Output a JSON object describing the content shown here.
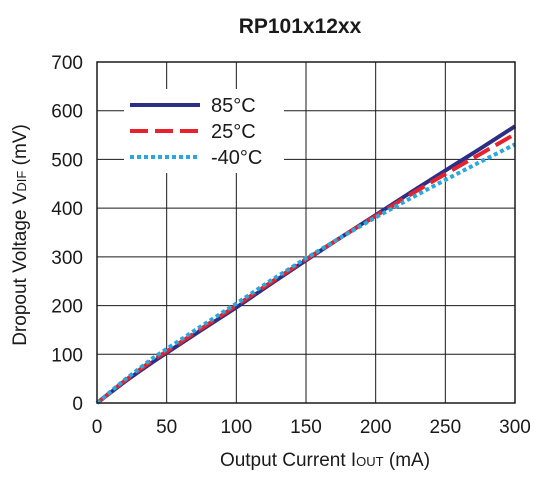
{
  "chart_data": {
    "type": "line",
    "title": "RP101x12xx",
    "xlabel": {
      "main": "Output Current I",
      "sub": "OUT",
      "unit": " (mA)"
    },
    "ylabel": {
      "main": "Dropout Voltage V",
      "sub": "DIF",
      "unit": " (mV)"
    },
    "xlim": [
      0,
      300
    ],
    "ylim": [
      0,
      700
    ],
    "xticks": [
      "0",
      "50",
      "100",
      "150",
      "200",
      "250",
      "300"
    ],
    "yticks": [
      "0",
      "100",
      "200",
      "300",
      "400",
      "500",
      "600",
      "700"
    ],
    "grid": true,
    "legend_position": "top-left",
    "series": [
      {
        "name": "85°C",
        "color": "#2b2f86",
        "dash": "solid",
        "x": [
          0,
          10,
          20,
          30,
          40,
          50,
          75,
          100,
          125,
          150,
          175,
          200,
          225,
          250,
          275,
          300
        ],
        "y": [
          0,
          22,
          44,
          64,
          84,
          103,
          150,
          196,
          245,
          293,
          340,
          386,
          432,
          477,
          522,
          568
        ]
      },
      {
        "name": "25°C",
        "color": "#e8222c",
        "dash": "long-dash",
        "x": [
          0,
          10,
          20,
          30,
          40,
          50,
          75,
          100,
          125,
          150,
          175,
          200,
          225,
          250,
          275,
          300
        ],
        "y": [
          0,
          23,
          46,
          67,
          88,
          106,
          153,
          200,
          248,
          295,
          340,
          384,
          428,
          470,
          511,
          552
        ]
      },
      {
        "name": "-40°C",
        "color": "#29a8e0",
        "dash": "dotted",
        "x": [
          0,
          10,
          20,
          30,
          40,
          50,
          75,
          100,
          125,
          150,
          175,
          200,
          225,
          250,
          275,
          300
        ],
        "y": [
          0,
          24,
          48,
          70,
          92,
          111,
          158,
          204,
          252,
          297,
          340,
          381,
          420,
          458,
          495,
          531
        ]
      }
    ]
  }
}
